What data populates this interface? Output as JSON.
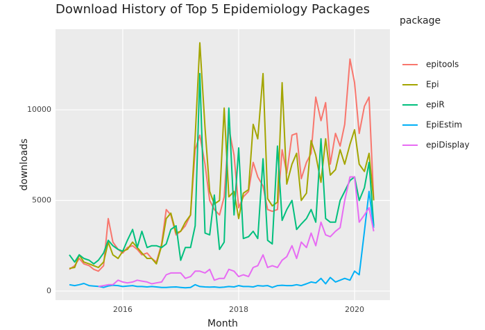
{
  "chart_data": {
    "type": "line",
    "title": "Download History of Top 5 Epidemiology Packages",
    "x_label": "Month",
    "y_label": "downloads",
    "legend_title": "package",
    "x": [
      2015.08,
      2015.17,
      2015.25,
      2015.33,
      2015.42,
      2015.5,
      2015.58,
      2015.67,
      2015.75,
      2015.83,
      2015.92,
      2016,
      2016.08,
      2016.17,
      2016.25,
      2016.33,
      2016.42,
      2016.5,
      2016.58,
      2016.67,
      2016.75,
      2016.83,
      2016.92,
      2017,
      2017.08,
      2017.17,
      2017.25,
      2017.33,
      2017.42,
      2017.5,
      2017.58,
      2017.67,
      2017.75,
      2017.83,
      2017.92,
      2018,
      2018.08,
      2018.17,
      2018.25,
      2018.33,
      2018.42,
      2018.5,
      2018.58,
      2018.67,
      2018.75,
      2018.83,
      2018.92,
      2019,
      2019.08,
      2019.17,
      2019.25,
      2019.33,
      2019.42,
      2019.5,
      2019.58,
      2019.67,
      2019.75,
      2019.83,
      2019.92,
      2020,
      2020.08,
      2020.17,
      2020.25,
      2020.33
    ],
    "series": [
      {
        "name": "epitools",
        "color": "#F8766D",
        "values": [
          1200,
          1400,
          1800,
          1500,
          1400,
          1200,
          1100,
          1400,
          4000,
          2700,
          2300,
          2100,
          2400,
          2500,
          2300,
          2000,
          2100,
          1800,
          1600,
          2600,
          4500,
          4200,
          3100,
          3300,
          3600,
          4200,
          7800,
          8600,
          7000,
          5000,
          4500,
          4200,
          5200,
          9000,
          7500,
          4600,
          5200,
          5500,
          7100,
          6300,
          5800,
          4500,
          4400,
          4500,
          7800,
          6500,
          8600,
          8700,
          6200,
          7100,
          7600,
          10700,
          9400,
          10400,
          7000,
          8700,
          8000,
          9200,
          12800,
          11500,
          8700,
          10200,
          10700,
          5000
        ]
      },
      {
        "name": "Epi",
        "color": "#A3A500",
        "values": [
          1250,
          1300,
          2000,
          1600,
          1500,
          1400,
          1300,
          1600,
          2700,
          2000,
          1800,
          2200,
          2300,
          2700,
          2400,
          2100,
          1800,
          1800,
          1500,
          2500,
          4000,
          4300,
          3200,
          3300,
          3800,
          4200,
          8500,
          13700,
          9000,
          5500,
          4800,
          5000,
          10100,
          5200,
          5500,
          4000,
          5400,
          5600,
          9200,
          8400,
          12000,
          5100,
          4700,
          4900,
          11500,
          5900,
          7000,
          7600,
          5000,
          5400,
          8300,
          7500,
          6000,
          8400,
          6400,
          6700,
          7800,
          7000,
          8100,
          8900,
          7000,
          6600,
          7600,
          5000
        ]
      },
      {
        "name": "epiR",
        "color": "#00BF7D",
        "values": [
          2000,
          1600,
          2000,
          1800,
          1700,
          1500,
          1700,
          2100,
          2800,
          2500,
          2300,
          2200,
          2800,
          3400,
          2400,
          3300,
          2400,
          2500,
          2500,
          2400,
          2600,
          3400,
          3600,
          1700,
          2400,
          2400,
          3600,
          12000,
          3200,
          3100,
          5300,
          2300,
          2700,
          10100,
          4200,
          7900,
          2900,
          3000,
          3300,
          2900,
          7300,
          2800,
          2600,
          8000,
          3900,
          4500,
          5000,
          3400,
          3700,
          4000,
          4500,
          3800,
          8400,
          4000,
          3800,
          3800,
          5000,
          5500,
          6100,
          6300,
          5000,
          5700,
          7100,
          3600
        ]
      },
      {
        "name": "EpiEstim",
        "color": "#00B0F6",
        "values": [
          350,
          300,
          350,
          420,
          300,
          280,
          260,
          200,
          280,
          320,
          300,
          250,
          280,
          300,
          250,
          250,
          230,
          250,
          230,
          200,
          200,
          220,
          230,
          200,
          180,
          200,
          350,
          250,
          230,
          220,
          230,
          200,
          220,
          250,
          230,
          300,
          250,
          250,
          230,
          300,
          280,
          300,
          200,
          300,
          320,
          300,
          300,
          350,
          300,
          400,
          500,
          450,
          700,
          400,
          750,
          500,
          600,
          700,
          600,
          1100,
          900,
          3300,
          5500,
          3500
        ]
      },
      {
        "name": "epiDisplay",
        "color": "#E76BF3",
        "values": [
          null,
          null,
          null,
          null,
          null,
          null,
          250,
          300,
          350,
          350,
          600,
          500,
          450,
          500,
          600,
          550,
          500,
          400,
          450,
          500,
          900,
          1000,
          1000,
          1000,
          700,
          800,
          1100,
          1100,
          1000,
          1200,
          600,
          700,
          700,
          1200,
          1100,
          800,
          900,
          800,
          1300,
          1400,
          2000,
          1300,
          1400,
          1300,
          1700,
          1900,
          2500,
          1800,
          2700,
          2400,
          3200,
          2500,
          3800,
          3100,
          3000,
          3300,
          3500,
          5000,
          6300,
          6300,
          3800,
          4200,
          4600,
          3300
        ]
      }
    ],
    "xlim": [
      2014.84,
      2020.61
    ],
    "xticks": [
      2016,
      2018,
      2020
    ],
    "ylim": [
      -500,
      14450
    ],
    "yticks": [
      0,
      5000,
      10000
    ],
    "grid": true,
    "legend": "right"
  }
}
